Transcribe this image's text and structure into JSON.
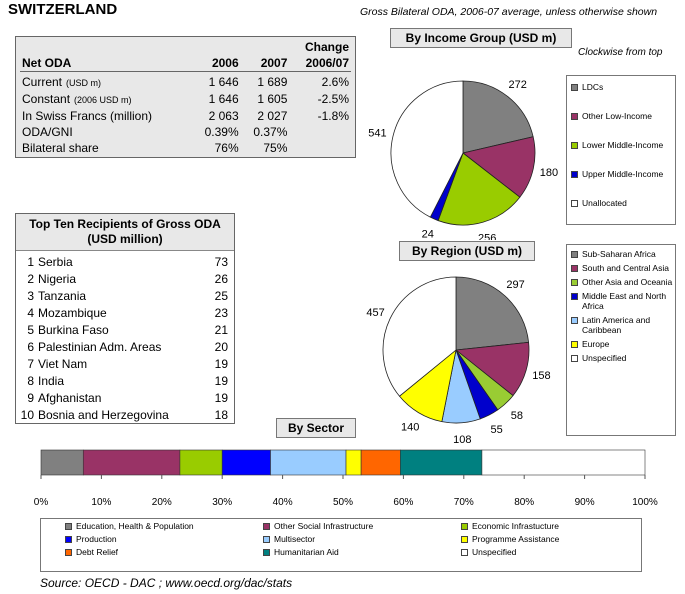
{
  "header": {
    "country": "SWITZERLAND",
    "subtitle": "Gross Bilateral ODA, 2006-07 average, unless otherwise shown"
  },
  "net_oda": {
    "title": "Net ODA",
    "col_2006": "2006",
    "col_2007": "2007",
    "col_change_line1": "Change",
    "col_change_line2": "2006/07",
    "rows": [
      {
        "label": "Current",
        "sub": "(USD m)",
        "v2006": "1 646",
        "v2007": "1 689",
        "change": "2.6%"
      },
      {
        "label": "Constant",
        "sub": "(2006 USD m)",
        "v2006": "1 646",
        "v2007": "1 605",
        "change": "-2.5%"
      },
      {
        "label": "In Swiss Francs (million)",
        "sub": "",
        "v2006": "2 063",
        "v2007": "2 027",
        "change": "-1.8%"
      },
      {
        "label": "ODA/GNI",
        "sub": "",
        "v2006": "0.39%",
        "v2007": "0.37%",
        "change": ""
      },
      {
        "label": "Bilateral share",
        "sub": "",
        "v2006": "76%",
        "v2007": "75%",
        "change": ""
      }
    ]
  },
  "top_ten": {
    "title": "Top Ten Recipients of Gross ODA (USD million)",
    "rows": [
      {
        "rank": "1",
        "name": "Serbia",
        "value": "73"
      },
      {
        "rank": "2",
        "name": "Nigeria",
        "value": "26"
      },
      {
        "rank": "3",
        "name": "Tanzania",
        "value": "25"
      },
      {
        "rank": "4",
        "name": "Mozambique",
        "value": "23"
      },
      {
        "rank": "5",
        "name": "Burkina Faso",
        "value": "21"
      },
      {
        "rank": "6",
        "name": "Palestinian Adm. Areas",
        "value": "20"
      },
      {
        "rank": "7",
        "name": "Viet Nam",
        "value": "19"
      },
      {
        "rank": "8",
        "name": "India",
        "value": "19"
      },
      {
        "rank": "9",
        "name": "Afghanistan",
        "value": "19"
      },
      {
        "rank": "10",
        "name": "Bosnia and Herzegovina",
        "value": "18"
      }
    ]
  },
  "clockwise_note": "Clockwise from top",
  "source": "Source:  OECD - DAC ; www.oecd.org/dac/stats",
  "chart_data": [
    {
      "type": "pie",
      "title": "By Income Group (USD m)",
      "labels": [
        "LDCs",
        "Other Low-Income",
        "Lower Middle-Income",
        "Upper Middle-Income",
        "Unallocated"
      ],
      "values": [
        272,
        180,
        256,
        24,
        541
      ],
      "colors": [
        "#808080",
        "#993366",
        "#99cc00",
        "#0000cc",
        "#ffffff"
      ],
      "legend_position": "right"
    },
    {
      "type": "pie",
      "title": "By Region (USD m)",
      "labels": [
        "Sub-Saharan Africa",
        "South and Central Asia",
        "Other Asia and Oceania",
        "Middle East and North Africa",
        "Latin America and Caribbean",
        "Europe",
        "Unspecified"
      ],
      "values": [
        297,
        158,
        58,
        55,
        108,
        140,
        457
      ],
      "colors": [
        "#808080",
        "#993366",
        "#99cc33",
        "#0000cc",
        "#99ccff",
        "#ffff00",
        "#ffffff"
      ],
      "legend_position": "right"
    },
    {
      "type": "bar",
      "orientation": "horizontal-stacked",
      "title": "By Sector",
      "labels": [
        "Education, Health & Population",
        "Other Social Infrastructure",
        "Economic Infrastucture",
        "Production",
        "Multisector",
        "Programme Assistance",
        "Debt Relief",
        "Humanitarian Aid",
        "Unspecified"
      ],
      "values": [
        7,
        16,
        7,
        8,
        12.5,
        2.5,
        6.5,
        13.5,
        27
      ],
      "colors": [
        "#808080",
        "#993366",
        "#99cc00",
        "#0000ff",
        "#99ccff",
        "#ffff00",
        "#ff6600",
        "#008080",
        "#ffffff"
      ],
      "xlim": [
        0,
        100
      ],
      "xticks": [
        "0%",
        "10%",
        "20%",
        "30%",
        "40%",
        "50%",
        "60%",
        "70%",
        "80%",
        "90%",
        "100%"
      ],
      "legend_position": "bottom"
    }
  ]
}
